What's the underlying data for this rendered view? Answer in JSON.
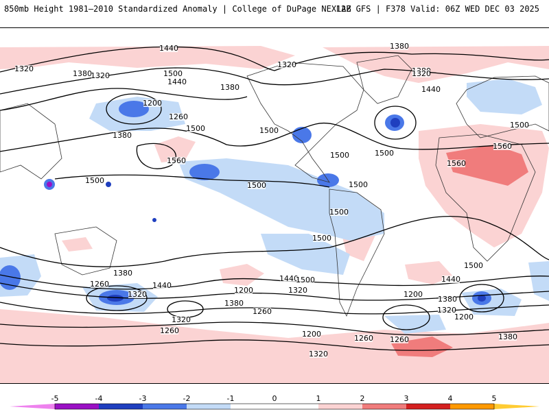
{
  "header": {
    "left": "850mb Height 1981–2010 Standardized Anomaly | College of DuPage NEXLAB",
    "right": "12Z GFS | F378 Valid: 06Z WED DEC 03 2025"
  },
  "map": {
    "contour_labels": [
      "1440",
      "1380",
      "1320",
      "1500",
      "1380",
      "1440",
      "1320",
      "1320",
      "1200",
      "1260",
      "1380",
      "1500",
      "1560",
      "1500",
      "1380",
      "1500",
      "1500",
      "1500",
      "1500",
      "1500",
      "1500",
      "1500",
      "1380",
      "1440",
      "1260",
      "1320",
      "1200",
      "1260",
      "1380",
      "1440",
      "1500",
      "1320",
      "1200",
      "1260",
      "1200",
      "1320",
      "1260",
      "1380",
      "1260",
      "1320",
      "1200",
      "1380",
      "1320",
      "1440",
      "1500",
      "1560",
      "1560",
      "1500",
      "1380",
      "1320",
      "1440"
    ],
    "colors": {
      "neg5": "#ee82ee",
      "neg4": "#9a10c4",
      "neg3": "#1f3fbf",
      "neg2": "#4a78e8",
      "neg1": "#c3dbf7",
      "pos1": "#fbd3d3",
      "pos2": "#f07c7c",
      "pos3": "#d42020",
      "pos4": "#b00000",
      "pos5": "#ff9900"
    }
  },
  "colorbar": {
    "labels": [
      "-5",
      "-4",
      "-3",
      "-2",
      "-1",
      "0",
      "1",
      "2",
      "3",
      "4",
      "5"
    ]
  }
}
